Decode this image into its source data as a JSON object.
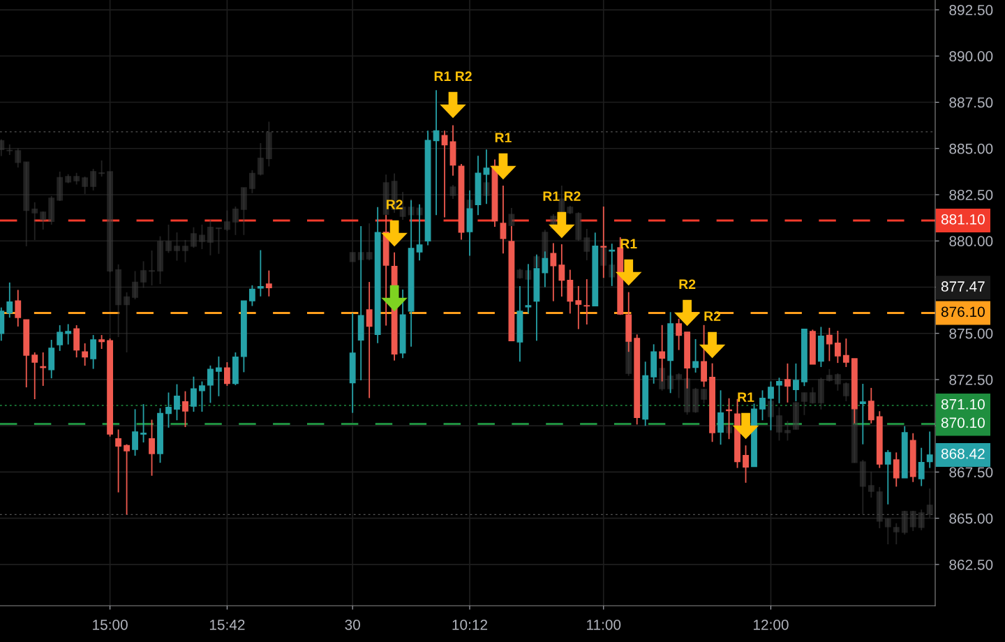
{
  "chart_data": {
    "type": "candlestick",
    "categories": [
      null,
      null,
      null,
      null,
      null,
      null,
      null,
      null,
      null,
      null,
      null,
      null,
      null,
      "15:00",
      null,
      null,
      null,
      null,
      null,
      null,
      null,
      null,
      null,
      null,
      null,
      null,
      null,
      "15:42",
      null,
      null,
      null,
      null,
      null,
      null,
      null,
      null,
      null,
      null,
      null,
      null,
      null,
      null,
      "30",
      null,
      null,
      null,
      null,
      null,
      null,
      null,
      null,
      null,
      null,
      null,
      null,
      null,
      "10:12",
      null,
      null,
      null,
      null,
      null,
      null,
      null,
      null,
      null,
      null,
      null,
      null,
      null,
      null,
      null,
      "11:00",
      null,
      null,
      null,
      null,
      null,
      null,
      null,
      null,
      null,
      null,
      null,
      null,
      null,
      null,
      null,
      null,
      null,
      null,
      null,
      "12:00",
      null,
      null,
      null,
      null,
      null,
      null,
      null,
      null,
      null,
      null,
      null,
      null,
      null,
      null,
      null,
      null,
      null,
      null,
      null
    ],
    "series": [
      {
        "color": "#3a3a3a",
        "ohlc": [
          [
            885.42,
            885.5,
            884.59,
            884.94
          ],
          [
            884.9,
            885.22,
            884.65,
            884.88
          ],
          [
            884.88,
            885.01,
            883.97,
            884.24
          ],
          [
            884.27,
            884.27,
            879.71,
            881.65
          ],
          [
            881.72,
            882.09,
            880.05,
            881.52
          ],
          [
            881.56,
            881.59,
            880.61,
            881.14
          ],
          [
            882.31,
            882.43,
            880.88,
            881.05
          ],
          [
            883.43,
            883.75,
            882.16,
            882.21
          ],
          [
            883.48,
            883.61,
            883.12,
            883.19
          ],
          [
            883.48,
            883.68,
            883.05,
            883.25
          ],
          [
            883.41,
            883.48,
            882.54,
            882.95
          ],
          [
            883.75,
            883.9,
            882.73,
            882.95
          ],
          [
            883.68,
            884.35,
            883.48,
            883.65
          ],
          [
            883.75,
            883.75,
            878.3,
            878.37
          ],
          [
            878.44,
            878.73,
            874.8,
            876.55
          ],
          [
            876.97,
            877.22,
            873.97,
            876.55
          ],
          [
            877.77,
            878.37,
            876.84,
            876.95
          ],
          [
            878.39,
            878.9,
            877.46,
            877.78
          ],
          [
            878.39,
            879.48,
            877.59,
            878.36
          ],
          [
            879.97,
            880.25,
            877.67,
            878.37
          ],
          [
            879.97,
            880.88,
            879.35,
            879.48
          ],
          [
            879.71,
            880.46,
            878.93,
            879.48
          ],
          [
            879.71,
            880.05,
            878.85,
            879.48
          ],
          [
            880.39,
            880.74,
            879.63,
            879.71
          ],
          [
            880.3,
            880.88,
            879.56,
            879.97
          ],
          [
            880.74,
            881.14,
            879.22,
            879.93
          ],
          [
            880.7,
            880.7,
            879.3,
            880.67
          ],
          [
            881.03,
            881.65,
            880.54,
            880.63
          ],
          [
            881.72,
            881.86,
            880.32,
            881.03
          ],
          [
            882.88,
            882.88,
            880.32,
            881.71
          ],
          [
            883.65,
            883.82,
            882.58,
            882.84
          ],
          [
            884.47,
            885.29,
            883.54,
            883.61
          ],
          [
            885.86,
            886.45,
            884.03,
            884.45
          ],
          null,
          null,
          null,
          null,
          null,
          null,
          null,
          null,
          null,
          [
            879.37,
            879.37,
            878.88,
            878.88
          ],
          [
            879.37,
            879.37,
            878.99,
            878.99
          ],
          [
            879.37,
            880.95,
            878.95,
            879.03
          ],
          null,
          [
            883.14,
            883.59,
            881.33,
            881.44
          ],
          [
            883.22,
            883.65,
            881.52,
            881.71
          ],
          [
            881.82,
            882.65,
            881.14,
            881.33
          ],
          [
            881.82,
            882.27,
            881.25,
            881.41
          ],
          [
            881.78,
            881.83,
            881.4,
            881.41
          ],
          null,
          null,
          null,
          [
            882.92,
            883.03,
            882.27,
            882.46
          ],
          null,
          [
            882.2,
            882.3,
            881.65,
            881.71
          ],
          null,
          [
            883.14,
            883.25,
            882.4,
            882.46
          ],
          null,
          null,
          [
            881.44,
            881.78,
            880.8,
            880.84
          ],
          [
            878.42,
            878.5,
            877.95,
            878.01
          ],
          [
            878.39,
            878.5,
            877.9,
            877.93
          ],
          [
            879.14,
            879.3,
            878.5,
            878.58
          ],
          [
            880.46,
            880.6,
            879.0,
            879.07
          ],
          [
            881.33,
            881.45,
            880.6,
            880.69
          ],
          [
            882.27,
            882.99,
            881.2,
            881.22
          ],
          [
            881.82,
            881.9,
            881.45,
            881.52
          ],
          [
            881.48,
            881.55,
            880.0,
            880.08
          ],
          [
            880.16,
            880.65,
            878.95,
            879.44
          ],
          null,
          [
            879.71,
            879.9,
            878.6,
            878.69
          ],
          [
            878.69,
            878.8,
            877.95,
            878.05
          ],
          null,
          [
            874.61,
            874.7,
            872.7,
            872.84
          ],
          null,
          null,
          null,
          [
            873.1,
            873.3,
            871.9,
            872.01
          ],
          [
            872.69,
            872.8,
            871.9,
            872.01
          ],
          [
            872.76,
            872.85,
            871.5,
            872.54
          ],
          [
            872.54,
            872.6,
            870.6,
            870.76
          ],
          [
            871.97,
            872.05,
            870.7,
            870.76
          ],
          [
            871.97,
            872.0,
            871.2,
            871.44
          ],
          null,
          null,
          [
            869.93,
            870.0,
            869.5,
            869.63
          ],
          null,
          null,
          null,
          null,
          [
            871.33,
            871.4,
            870.4,
            870.5
          ],
          [
            870.54,
            871.0,
            869.2,
            869.67
          ],
          [
            869.75,
            870.27,
            869.2,
            869.63
          ],
          [
            871.25,
            871.3,
            869.8,
            869.82
          ],
          [
            871.78,
            871.8,
            870.58,
            871.33
          ],
          [
            871.78,
            872.08,
            871.2,
            871.25
          ],
          [
            872.5,
            872.6,
            870.88,
            871.25
          ],
          [
            872.73,
            873.07,
            872.4,
            872.46
          ],
          [
            872.76,
            872.84,
            871.9,
            872.27
          ],
          [
            872.27,
            872.35,
            871.33,
            871.63
          ],
          [
            870.88,
            870.9,
            868.0,
            868.01
          ],
          [
            868.05,
            868.16,
            865.22,
            866.73
          ],
          [
            866.76,
            867.52,
            866.12,
            866.46
          ],
          [
            866.42,
            866.69,
            864.46,
            864.84
          ],
          [
            864.95,
            865.0,
            863.59,
            864.54
          ],
          [
            864.5,
            864.73,
            863.59,
            864.27
          ],
          [
            865.37,
            865.4,
            864.12,
            864.24
          ],
          [
            865.37,
            865.4,
            864.31,
            864.54
          ],
          [
            865.29,
            865.47,
            864.35,
            864.5
          ],
          [
            865.71,
            866.61,
            865.03,
            865.22
          ]
        ]
      },
      {
        "colors": [
          "#26a2a8",
          "#26a2a8",
          "#f05a4f",
          "#f05a4f",
          "#f05a4f",
          "#f05a4f",
          "#26a2a8",
          "#26a2a8",
          "#26a2a8",
          "#f05a4f",
          "#f05a4f",
          "#26a2a8",
          "#f05a4f",
          "#f05a4f",
          "#f05a4f",
          "#f05a4f",
          "#26a2a8",
          "#26a2a8",
          "#f05a4f",
          "#26a2a8",
          "#26a2a8",
          "#26a2a8",
          "#f05a4f",
          "#26a2a8",
          "#26a2a8",
          "#26a2a8",
          "#26a2a8",
          "#f05a4f",
          "#26a2a8",
          "#26a2a8",
          "#26a2a8",
          "#26a2a8",
          "#f05a4f",
          null,
          null,
          null,
          null,
          null,
          null,
          null,
          null,
          null,
          "#26a2a8",
          "#26a2a8",
          "#f05a4f",
          "#26a2a8",
          "#f05a4f",
          "#f05a4f",
          "#26a2a8",
          "#26a2a8",
          "#26a2a8",
          "#26a2a8",
          "#26a2a8",
          "#f05a4f",
          "#f05a4f",
          "#f05a4f",
          "#26a2a8",
          "#26a2a8",
          "#26a2a8",
          "#f05a4f",
          "#f05a4f",
          "#f05a4f",
          "#26a2a8",
          "#26a2a8",
          "#26a2a8",
          "#26a2a8",
          "#f05a4f",
          "#f05a4f",
          "#f05a4f",
          "#f05a4f",
          "#f05a4f",
          "#26a2a8",
          "#f05a4f",
          "#26a2a8",
          "#f05a4f",
          "#f05a4f",
          "#f05a4f",
          "#26a2a8",
          "#26a2a8",
          "#f05a4f",
          "#26a2a8",
          "#f05a4f",
          "#f05a4f",
          "#26a2a8",
          "#f05a4f",
          "#f05a4f",
          "#26a2a8",
          "#f05a4f",
          "#f05a4f",
          "#f05a4f",
          "#26a2a8",
          "#26a2a8",
          "#26a2a8",
          "#26a2a8",
          "#f05a4f",
          "#26a2a8",
          "#26a2a8",
          "#f05a4f",
          "#26a2a8",
          "#f05a4f",
          "#f05a4f",
          "#f05a4f",
          "#f05a4f",
          "#26a2a8",
          "#f05a4f",
          "#f05a4f",
          "#26a2a8",
          "#f05a4f",
          "#26a2a8",
          "#f05a4f",
          "#26a2a8",
          "#26a2a8"
        ],
        "ohlc": [
          [
            875.0,
            876.4,
            874.6,
            876.2
          ],
          [
            876.1,
            877.75,
            875.85,
            876.7
          ],
          [
            876.76,
            877.35,
            875.37,
            875.86
          ],
          [
            875.74,
            875.74,
            872.08,
            873.82
          ],
          [
            873.82,
            873.97,
            871.44,
            873.44
          ],
          [
            873.2,
            873.97,
            872.16,
            873.15
          ],
          [
            873.03,
            874.65,
            872.57,
            874.2
          ],
          [
            874.38,
            875.44,
            874.05,
            875.06
          ],
          [
            875.0,
            875.5,
            874.4,
            875.1
          ],
          [
            875.25,
            875.44,
            873.7,
            874.1
          ],
          [
            874.0,
            874.46,
            873.25,
            873.72
          ],
          [
            873.63,
            874.91,
            873.08,
            874.65
          ],
          [
            874.65,
            874.91,
            874.16,
            874.55
          ],
          [
            874.6,
            874.72,
            869.42,
            869.55
          ],
          [
            869.3,
            869.8,
            866.4,
            868.9
          ],
          [
            868.93,
            869.0,
            865.2,
            868.65
          ],
          [
            868.72,
            870.9,
            868.38,
            869.67
          ],
          [
            869.55,
            871.17,
            869.1,
            869.6
          ],
          [
            869.3,
            870.33,
            867.3,
            868.5
          ],
          [
            868.5,
            870.95,
            868.0,
            870.67
          ],
          [
            870.67,
            871.8,
            869.9,
            871.0
          ],
          [
            870.9,
            872.25,
            870.3,
            871.6
          ],
          [
            871.3,
            871.87,
            869.93,
            870.8
          ],
          [
            871.06,
            872.66,
            870.76,
            872.0
          ],
          [
            871.9,
            872.4,
            870.76,
            872.16
          ],
          [
            872.2,
            873.26,
            871.24,
            873.06
          ],
          [
            872.95,
            873.75,
            871.6,
            873.13
          ],
          [
            873.13,
            873.44,
            872.16,
            872.29
          ],
          [
            872.29,
            873.97,
            872.2,
            873.72
          ],
          [
            873.75,
            876.76,
            872.9,
            876.76
          ],
          [
            876.76,
            877.6,
            876.48,
            877.39
          ],
          [
            877.45,
            879.5,
            877.0,
            877.53
          ],
          [
            877.67,
            878.4,
            877.0,
            877.47
          ],
          null,
          null,
          null,
          null,
          null,
          null,
          null,
          null,
          null,
          [
            872.33,
            876.1,
            870.7,
            873.93
          ],
          [
            874.64,
            880.8,
            872.46,
            875.96
          ],
          [
            876.27,
            877.78,
            871.5,
            875.38
          ],
          [
            874.94,
            881.83,
            874.47,
            880.45
          ],
          [
            880.47,
            881.4,
            875.42,
            878.69
          ],
          [
            878.62,
            879.38,
            873.53,
            873.88
          ],
          [
            873.94,
            877.37,
            873.66,
            876.0
          ],
          [
            876.2,
            882.2,
            874.28,
            879.6
          ],
          [
            879.4,
            881.98,
            878.94,
            879.78
          ],
          [
            880.0,
            885.96,
            879.76,
            885.44
          ],
          [
            885.42,
            888.15,
            881.4,
            885.96
          ],
          [
            885.7,
            885.96,
            881.27,
            885.2
          ],
          [
            885.36,
            886.26,
            883.53,
            884.1
          ],
          [
            884.04,
            884.16,
            880.07,
            880.47
          ],
          [
            880.5,
            882.74,
            879.2,
            881.74
          ],
          [
            881.96,
            884.6,
            881.4,
            883.66
          ],
          [
            883.6,
            884.94,
            882.0,
            883.94
          ],
          [
            884.04,
            884.41,
            880.76,
            881.08
          ],
          [
            880.95,
            882.99,
            879.32,
            880.13
          ],
          [
            879.97,
            880.8,
            874.6,
            874.6
          ],
          [
            874.53,
            877.56,
            873.47,
            876.2
          ],
          [
            876.43,
            878.75,
            876.07,
            876.5
          ],
          [
            876.74,
            879.25,
            874.6,
            878.5
          ],
          [
            878.28,
            879.43,
            877.5,
            879.05
          ],
          [
            879.32,
            879.88,
            876.74,
            878.66
          ],
          [
            878.69,
            879.82,
            876.99,
            877.87
          ],
          [
            877.87,
            878.44,
            876.07,
            876.74
          ],
          [
            876.77,
            877.56,
            875.23,
            876.57
          ],
          [
            876.5,
            877.93,
            875.48,
            876.48
          ],
          [
            876.49,
            880.45,
            876.48,
            879.72
          ],
          [
            879.7,
            881.86,
            878.0,
            879.67
          ],
          [
            879.45,
            879.85,
            877.56,
            879.5
          ],
          [
            879.63,
            880.2,
            876.0,
            876.04
          ],
          [
            876.0,
            877.23,
            874.0,
            874.57
          ],
          [
            874.73,
            874.94,
            870.07,
            870.45
          ],
          [
            870.36,
            873.47,
            870.0,
            872.71
          ],
          [
            872.65,
            874.41,
            872.28,
            874.0
          ],
          [
            874.0,
            875.45,
            872.4,
            873.66
          ],
          [
            873.53,
            876.15,
            871.77,
            875.52
          ],
          [
            875.52,
            875.79,
            874.1,
            874.89
          ],
          [
            875.07,
            875.07,
            872.02,
            873.13
          ],
          [
            873.16,
            874.69,
            872.88,
            873.47
          ],
          [
            873.47,
            875.45,
            872.1,
            872.42
          ],
          [
            872.62,
            873.38,
            869.13,
            869.63
          ],
          [
            869.66,
            871.92,
            868.98,
            870.7
          ],
          [
            870.86,
            871.49,
            869.28,
            870.82
          ],
          [
            870.64,
            871.45,
            867.72,
            868.06
          ],
          [
            868.4,
            868.94,
            866.92,
            867.77
          ],
          [
            867.8,
            871.2,
            867.8,
            870.91
          ],
          [
            870.91,
            871.92,
            870.3,
            871.49
          ],
          [
            871.49,
            872.4,
            869.76,
            872.09
          ],
          [
            872.2,
            872.6,
            871.22,
            872.4
          ],
          [
            872.5,
            873.37,
            871.26,
            872.15
          ],
          [
            871.96,
            873.37,
            871.33,
            872.46
          ],
          [
            872.38,
            875.23,
            872.15,
            875.23
          ],
          [
            875.1,
            875.2,
            873.34,
            873.34
          ],
          [
            873.5,
            875.35,
            873.18,
            874.85
          ],
          [
            874.9,
            875.3,
            873.5,
            874.43
          ],
          [
            874.47,
            875.14,
            873.4,
            873.78
          ],
          [
            873.8,
            874.72,
            873.18,
            873.44
          ],
          [
            873.63,
            873.63,
            870.13,
            870.92
          ],
          [
            871.2,
            872.27,
            869.0,
            871.29
          ],
          [
            871.33,
            872.05,
            870.13,
            870.33
          ],
          [
            870.49,
            870.79,
            867.72,
            867.93
          ],
          [
            867.93,
            868.69,
            865.75,
            868.56
          ],
          [
            868.16,
            868.56,
            866.71,
            867.18
          ],
          [
            867.18,
            869.98,
            867.18,
            869.63
          ],
          [
            869.21,
            869.6,
            866.96,
            867.26
          ],
          [
            867.14,
            868.81,
            866.74,
            868.02
          ],
          [
            868.06,
            869.69,
            867.72,
            868.42
          ]
        ]
      },
      {
        "type": "scatter",
        "color": "#ffc107",
        "marker": "triangle",
        "values": [
          null,
          null,
          null,
          null,
          null,
          null,
          null,
          null,
          null,
          null,
          null,
          null,
          null,
          null,
          null,
          null,
          null,
          null,
          null,
          null,
          null,
          null,
          null,
          null,
          null,
          null,
          null,
          null,
          null,
          null,
          null,
          null,
          null,
          null,
          null,
          null,
          null,
          null,
          null,
          null,
          null,
          null,
          null,
          null,
          null,
          null,
          null,
          880.41,
          null,
          null,
          null,
          null,
          null,
          null,
          887.35,
          null,
          null,
          null,
          null,
          null,
          884.03,
          null,
          null,
          null,
          null,
          null,
          null,
          880.86,
          null,
          null,
          null,
          null,
          null,
          null,
          null,
          878.29,
          null,
          null,
          null,
          null,
          null,
          null,
          876.1,
          null,
          null,
          874.37,
          null,
          null,
          null,
          869.99,
          null,
          null,
          null,
          null,
          null,
          null,
          null,
          null,
          null,
          null,
          null,
          null,
          null,
          null,
          null,
          null,
          null,
          null,
          null,
          null,
          null,
          null
        ],
        "value_labels": [
          null,
          null,
          null,
          null,
          null,
          null,
          null,
          null,
          null,
          null,
          null,
          null,
          null,
          null,
          null,
          null,
          null,
          null,
          null,
          null,
          null,
          null,
          null,
          null,
          null,
          null,
          null,
          null,
          null,
          null,
          null,
          null,
          null,
          null,
          null,
          null,
          null,
          null,
          null,
          null,
          null,
          null,
          null,
          null,
          null,
          null,
          null,
          "R2",
          null,
          null,
          null,
          null,
          null,
          null,
          "R1 R2",
          null,
          null,
          null,
          null,
          null,
          "R1",
          null,
          null,
          null,
          null,
          null,
          null,
          "R1 R2",
          null,
          null,
          null,
          null,
          null,
          null,
          null,
          "R1",
          null,
          null,
          null,
          null,
          null,
          null,
          "R2",
          null,
          null,
          "R2",
          null,
          null,
          null,
          "R1",
          null,
          null,
          null,
          null,
          null,
          null,
          null,
          null,
          null,
          null,
          null,
          null,
          null,
          null,
          null,
          null,
          null,
          null,
          null,
          null,
          null,
          null
        ]
      },
      {
        "type": "scatter",
        "color": "#7ed321",
        "marker": "triangle",
        "values": [
          null,
          null,
          null,
          null,
          null,
          null,
          null,
          null,
          null,
          null,
          null,
          null,
          null,
          null,
          null,
          null,
          null,
          null,
          null,
          null,
          null,
          null,
          null,
          null,
          null,
          null,
          null,
          null,
          null,
          null,
          null,
          null,
          null,
          null,
          null,
          null,
          null,
          null,
          null,
          null,
          null,
          null,
          null,
          null,
          null,
          null,
          null,
          876.9,
          null,
          null,
          null,
          null,
          null,
          null,
          null,
          null,
          null,
          null,
          null,
          null,
          null,
          null,
          null,
          null,
          null,
          null,
          null,
          null,
          null,
          null,
          null,
          null,
          null,
          null,
          null,
          null,
          null,
          null,
          null,
          null,
          null,
          null,
          null,
          null,
          null,
          null,
          null,
          null,
          null,
          null,
          null,
          null,
          null,
          null,
          null,
          null,
          null,
          null,
          null,
          null,
          null,
          null,
          null,
          null,
          null,
          null,
          null,
          null,
          null,
          null,
          null,
          null
        ]
      }
    ],
    "ylim": [
      860.27,
      893.03
    ],
    "yticks": [
      {
        "value": 862.5,
        "label": "862.50"
      },
      {
        "value": 865,
        "label": "865.00"
      },
      {
        "value": 867.5,
        "label": "867.50"
      },
      {
        "value": 870,
        "label": null
      },
      {
        "value": 872.5,
        "label": "872.50"
      },
      {
        "value": 875,
        "label": "875.00"
      },
      {
        "value": 877.5,
        "label": null
      },
      {
        "value": 880,
        "label": "880.00"
      },
      {
        "value": 882.5,
        "label": "882.50"
      },
      {
        "value": 885,
        "label": "885.00"
      },
      {
        "value": 887.5,
        "label": "887.50"
      },
      {
        "value": 890,
        "label": "890.00"
      },
      {
        "value": 892.5,
        "label": "892.50"
      }
    ],
    "ref_lines": [
      {
        "axis": "y",
        "value": 885.9,
        "color": "#555555",
        "line_style": "dotted"
      },
      {
        "axis": "y",
        "value": 865.2,
        "color": "#555555",
        "line_style": "dotted"
      },
      {
        "axis": "y",
        "value": 871.1,
        "label": "871.10",
        "color": "#1f8f3f",
        "line_style": "dotted"
      },
      {
        "axis": "y",
        "value": 881.1,
        "label": "881.10",
        "color": "#f23b2c",
        "line_style": "dashed"
      },
      {
        "axis": "y",
        "value": 876.1,
        "label": "876.10",
        "color": "#ff9f1c",
        "line_style": "dashed"
      },
      {
        "axis": "y",
        "value": 870.1,
        "label": "870.10",
        "color": "#1f8f3f",
        "line_style": "dashed"
      }
    ],
    "annotations": [
      "877.47",
      "868.42"
    ],
    "grid": true
  }
}
